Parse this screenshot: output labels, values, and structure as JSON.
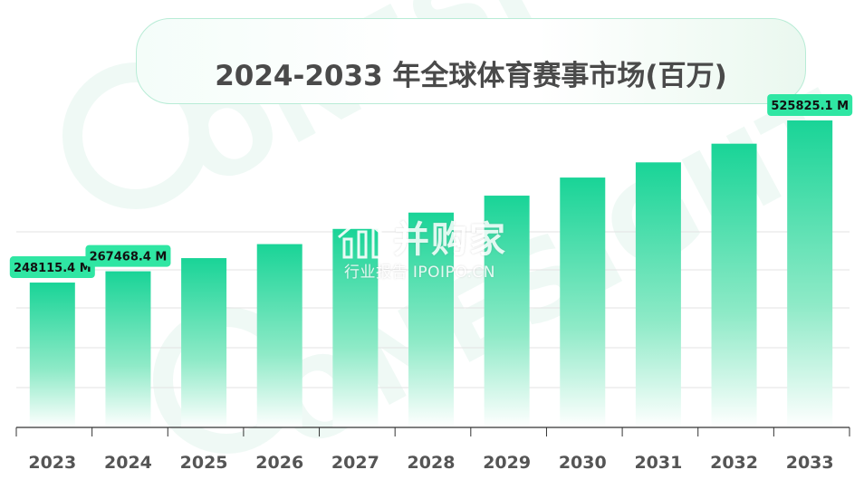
{
  "chart_data": {
    "type": "bar",
    "title": "2024-2033 年全球体育赛事市场(百万)",
    "categories": [
      "2023",
      "2024",
      "2025",
      "2026",
      "2027",
      "2028",
      "2029",
      "2030",
      "2031",
      "2032",
      "2033"
    ],
    "values": [
      248115.4,
      267468.4,
      290000,
      314000,
      340000,
      368000,
      397000,
      428000,
      454000,
      486000,
      525825.1
    ],
    "data_labels": [
      {
        "index": 0,
        "text": "248115.4 M"
      },
      {
        "index": 1,
        "text": "267468.4 M"
      },
      {
        "index": 10,
        "text": "525825.1 M"
      }
    ],
    "ylim": [
      0,
      600000
    ],
    "grid": true,
    "legend": "none",
    "colors": {
      "bar_top": "#1ed69a",
      "bar_bottom": "#ffffff",
      "label_bg": "#2fe6a3",
      "axis": "#333333",
      "grid": "#e3e3e3",
      "tick_text": "#555555"
    }
  },
  "watermark": {
    "brand": "并购家",
    "sub": "行业报告 IPOIPO.CN",
    "logo_icon": "bar-chart-house-icon",
    "background_text": "ONESIGHT"
  }
}
